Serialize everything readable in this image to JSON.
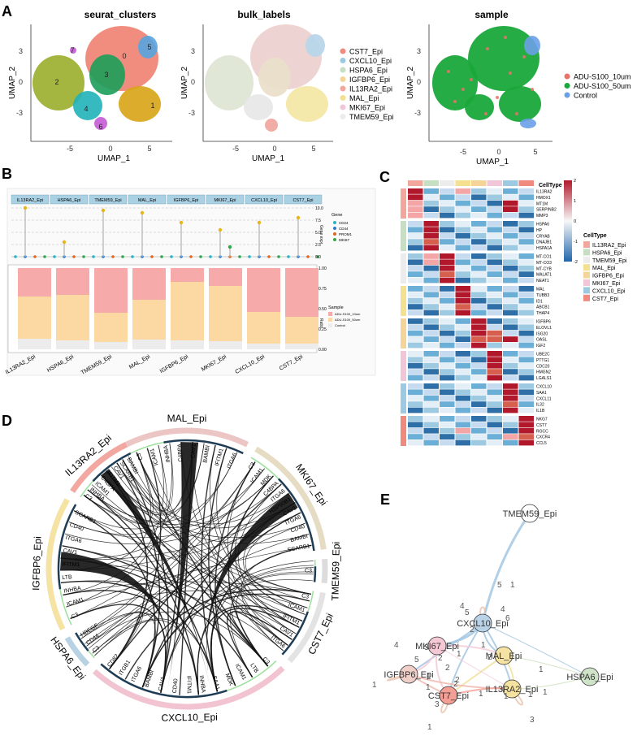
{
  "panels": {
    "A": "A",
    "B": "B",
    "C": "C",
    "D": "D",
    "E": "E"
  },
  "colors": {
    "CST7_Epi": "#f08a7e",
    "CXCL10_Epi": "#9ec9e3",
    "HSPA6_Epi": "#c6dfc2",
    "IGFBP6_Epi": "#f5d49a",
    "IL13RA2_Epi": "#f2a79c",
    "MAL_Epi": "#f4e08f",
    "MKI67_Epi": "#f2c6d9",
    "TMEM59_Epi": "#ececec",
    "ADU_10": "#e8736b",
    "ADU_50": "#1aa83a",
    "Control": "#6aa0e8"
  },
  "panelA": {
    "umaps": [
      {
        "title": "seurat_clusters",
        "xlabel": "UMAP_1",
        "ylabel": "UMAP_2",
        "xticks": [
          "-5",
          "0",
          "5"
        ],
        "yticks": [
          "3",
          "0",
          "-3"
        ],
        "cluster_labels": [
          "0",
          "1",
          "2",
          "3",
          "4",
          "5",
          "6",
          "7"
        ]
      },
      {
        "title": "bulk_labels",
        "xlabel": "UMAP_1",
        "ylabel": "UMAP_2",
        "xticks": [
          "-5",
          "0",
          "5"
        ],
        "yticks": [
          "3",
          "0",
          "-3"
        ]
      },
      {
        "title": "sample",
        "xlabel": "UMAP_1",
        "ylabel": "UMAP_2",
        "xticks": [
          "-5",
          "0",
          "5"
        ],
        "yticks": [
          "3",
          "0",
          "-3"
        ]
      }
    ],
    "bulk_legend": [
      "CST7_Epi",
      "CXCL10_Epi",
      "HSPA6_Epi",
      "IGFBP6_Epi",
      "IL13RA2_Epi",
      "MAL_Epi",
      "MKI67_Epi",
      "TMEM59_Epi"
    ],
    "sample_legend": [
      "ADU-S100_10um",
      "ADU-S100_50um",
      "Control"
    ]
  },
  "panelB": {
    "cell_types": [
      "IL13RA2_Epi",
      "HSPA6_Epi",
      "TMEM59_Epi",
      "MAL_Epi",
      "IGFBP6_Epi",
      "MKI67_Epi",
      "CXCL10_Epi",
      "CST7_Epi"
    ],
    "lollipop_heights": [
      10,
      3,
      9.5,
      9,
      7,
      5.5,
      7,
      8
    ],
    "mki67_extra": 2,
    "y1_ticks": [
      "10.0",
      "7.5",
      "5.0",
      "2.5",
      "0.0"
    ],
    "y1_label": "Gene expr",
    "gene_legend_title": "Gene",
    "genes": [
      "CD24",
      "CD44",
      "PROM1",
      "MKI67"
    ],
    "gene_colors": [
      "#26b5c6",
      "#2a7bd0",
      "#e0651e",
      "#2fa84a"
    ],
    "proportions": {
      "Control": [
        0.13,
        0.11,
        0.09,
        0.12,
        0.11,
        0.1,
        0.07,
        0.07
      ],
      "ADU_50": [
        0.52,
        0.56,
        0.36,
        0.49,
        0.72,
        0.68,
        0.39,
        0.33
      ],
      "ADU_10": [
        0.35,
        0.33,
        0.55,
        0.39,
        0.17,
        0.22,
        0.54,
        0.6
      ]
    },
    "y2_ticks": [
      "1.00",
      "0.75",
      "0.50",
      "0.25",
      "0.00"
    ],
    "y2_label": "Ratio",
    "sample_legend_title": "Sample",
    "sample_legend": [
      "ADU-S100_10um",
      "ADU-S100_50um",
      "Control"
    ]
  },
  "panelC": {
    "celltype_title": "CellType",
    "scale_ticks": [
      "2",
      "1",
      "0",
      "-1",
      "-2"
    ],
    "groups": [
      {
        "type": "IL13RA2_Epi",
        "genes": [
          "IL13RA2",
          "HMOX1",
          "MT1M",
          "SERPINB2",
          "MMP3"
        ]
      },
      {
        "type": "HSPA6_Epi",
        "genes": [
          "HSPA6",
          "HP",
          "CRYAB",
          "DNAJB1",
          "HSPA1A"
        ]
      },
      {
        "type": "TMEM59_Epi",
        "genes": [
          "MT-CO1",
          "MT-CO3",
          "MT-CYB",
          "MALAT1",
          "NEAT1"
        ]
      },
      {
        "type": "MAL_Epi",
        "genes": [
          "MAL",
          "TUBB3",
          "ID1",
          "ABCB1",
          "THAP4"
        ]
      },
      {
        "type": "IGFBP6_Epi",
        "genes": [
          "IGFBP6",
          "ELOVL1",
          "ISG20",
          "OASL",
          "IGF2"
        ]
      },
      {
        "type": "MKI67_Epi",
        "genes": [
          "UBE2C",
          "PTTG1",
          "CDC20",
          "HMGN2",
          "LGALS1"
        ]
      },
      {
        "type": "CXCL10_Epi",
        "genes": [
          "CXCL10",
          "SAA1",
          "CXCL11",
          "IL32",
          "IL1B"
        ]
      },
      {
        "type": "CST7_Epi",
        "genes": [
          "NKG7",
          "CST7",
          "RGCC",
          "CXCR4",
          "CCL5"
        ]
      }
    ],
    "legend": [
      "IL13RA2_Epi",
      "HSPA6_Epi",
      "TMEM59_Epi",
      "MAL_Epi",
      "IGFBP6_Epi",
      "MKI67_Epi",
      "CXCL10_Epi",
      "CST7_Epi"
    ]
  },
  "panelD": {
    "sectors": [
      {
        "name": "MAL_Epi",
        "genes": [
          "C3",
          "ICAM1",
          "INHBA",
          "C4BPA",
          "CAV1",
          "BAMBI",
          "IFITM1",
          "ITGA6"
        ]
      },
      {
        "name": "MKI67_Epi",
        "genes": [
          "C3",
          "ICAM1",
          "MDK",
          "C4BPA",
          "ITGA6",
          "HSP90B1",
          "CAV1",
          "ITGA6",
          "CD40",
          "BAMBI",
          "SCARB1"
        ]
      },
      {
        "name": "TMEM59_Epi",
        "genes": [
          "C3"
        ]
      },
      {
        "name": "CST7_Epi",
        "genes": [
          "C3",
          "ICAM1",
          "IFITM1",
          "CAV1",
          "ITGA6"
        ]
      },
      {
        "name": "CXCL10_Epi",
        "genes": [
          "C3",
          "LTB",
          "ICAM1",
          "MDK",
          "SAA1",
          "INHBA",
          "IFITM1",
          "CD40",
          "CAV1",
          "BAMBI",
          "ITGA6",
          "ITGB1",
          "CD82"
        ]
      },
      {
        "name": "HSPA6_Epi",
        "genes": [
          "C3",
          "CD44",
          "HBEGF"
        ]
      },
      {
        "name": "IGFBP6_Epi",
        "genes": [
          "C3",
          "ICAM1",
          "INHBA",
          "LTB",
          "IFITM1",
          "CAV1",
          "ITGA6",
          "CD40",
          "SCARB1"
        ]
      },
      {
        "name": "IL13RA2_Epi",
        "genes": [
          "C3",
          "INHBA",
          "ICAM1",
          "C4BPA",
          "IFITM1",
          "CAV1",
          "SCARB1",
          "BAMBI"
        ]
      }
    ]
  },
  "panelE": {
    "nodes": [
      "TMEM59_Epi",
      "CXCL10_Epi",
      "MKI67_Epi",
      "MAL_Epi",
      "IGFBP6_Epi",
      "HSPA6_Epi",
      "CST7_Epi",
      "IL13RA2_Epi"
    ],
    "edge_labels": [
      "5",
      "1",
      "4",
      "5",
      "4",
      "6",
      "2",
      "3",
      "1",
      "4",
      "2",
      "5",
      "2",
      "1",
      "2",
      "1",
      "2",
      "1",
      "3",
      "1",
      "1",
      "1",
      "1",
      "2",
      "1",
      "3",
      "1",
      "1"
    ]
  }
}
